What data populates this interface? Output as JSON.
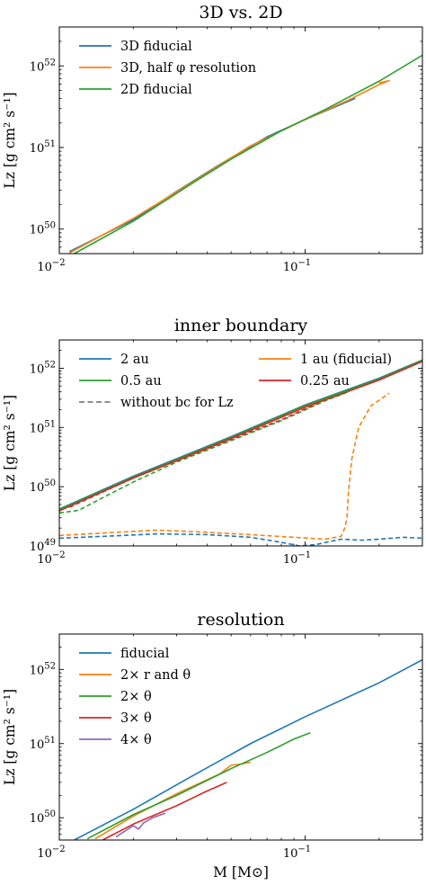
{
  "xlabel": "M [M⊙]",
  "colors": {
    "blue": "#1f77b4",
    "orange": "#ff7f0e",
    "green": "#2ca02c",
    "red": "#d62728",
    "purple": "#9467bd",
    "gray": "#7f7f7f"
  },
  "chart_data": [
    {
      "type": "line",
      "title": "3D vs. 2D",
      "ylabel": "Lz [g cm² s⁻¹]",
      "xscale": "log",
      "yscale": "log",
      "xlim": [
        0.01,
        0.3
      ],
      "ylim": [
        5e+49,
        3e+52
      ],
      "xticks": [
        {
          "v": 0.01,
          "b": "10",
          "e": "−2"
        },
        {
          "v": 0.1,
          "b": "10",
          "e": "−1"
        }
      ],
      "yticks": [
        {
          "v": 1e+50,
          "b": "10",
          "e": "50"
        },
        {
          "v": 1e+51,
          "b": "10",
          "e": "51"
        },
        {
          "v": 1e+52,
          "b": "10",
          "e": "52"
        }
      ],
      "legend": {
        "placement": "top-left",
        "columns": 1
      },
      "series": [
        {
          "name": "3D fiducial",
          "color": "blue",
          "dash": false,
          "points": [
            [
              0.011,
              5.3e+49
            ],
            [
              0.02,
              1.3e+50
            ],
            [
              0.03,
              2.9e+50
            ],
            [
              0.045,
              6.2e+50
            ],
            [
              0.07,
              1.35e+51
            ],
            [
              0.1,
              2.2e+51
            ],
            [
              0.16,
              4e+51
            ]
          ]
        },
        {
          "name": "3D, half φ resolution",
          "color": "orange",
          "dash": false,
          "points": [
            [
              0.011,
              5.1e+49
            ],
            [
              0.02,
              1.35e+50
            ],
            [
              0.035,
              3.8e+50
            ],
            [
              0.06,
              1.05e+51
            ],
            [
              0.1,
              2.2e+51
            ],
            [
              0.15,
              3.8e+51
            ],
            [
              0.2,
              5.9e+51
            ],
            [
              0.22,
              6.6e+51
            ],
            [
              0.2,
              6.2e+51
            ]
          ]
        },
        {
          "name": "2D fiducial",
          "color": "green",
          "dash": false,
          "points": [
            [
              0.0115,
              5e+49
            ],
            [
              0.02,
              1.25e+50
            ],
            [
              0.035,
              3.7e+50
            ],
            [
              0.05,
              7.2e+50
            ],
            [
              0.08,
              1.6e+51
            ],
            [
              0.12,
              2.9e+51
            ],
            [
              0.2,
              6.5e+51
            ],
            [
              0.3,
              1.35e+52
            ]
          ]
        }
      ]
    },
    {
      "type": "line",
      "title": "inner boundary",
      "ylabel": "Lz [g cm² s⁻¹]",
      "xscale": "log",
      "yscale": "log",
      "xlim": [
        0.01,
        0.3
      ],
      "ylim": [
        1e+49,
        3e+52
      ],
      "xticks": [
        {
          "v": 0.01,
          "b": "10",
          "e": "−2"
        },
        {
          "v": 0.1,
          "b": "10",
          "e": "−1"
        }
      ],
      "yticks": [
        {
          "v": 1e+49,
          "b": "10",
          "e": "49"
        },
        {
          "v": 1e+50,
          "b": "10",
          "e": "50"
        },
        {
          "v": 1e+51,
          "b": "10",
          "e": "51"
        },
        {
          "v": 1e+52,
          "b": "10",
          "e": "52"
        }
      ],
      "legend": {
        "placement": "top-left",
        "columns": 2
      },
      "series": [
        {
          "name": "2 au",
          "color": "blue",
          "dash": false,
          "points": [
            [
              0.01,
              4.2e+49
            ],
            [
              0.02,
              1.5e+50
            ],
            [
              0.05,
              7e+50
            ],
            [
              0.1,
              2.4e+51
            ],
            [
              0.2,
              6.8e+51
            ],
            [
              0.3,
              1.38e+52
            ]
          ]
        },
        {
          "name": "1 au (fiducial)",
          "color": "orange",
          "dash": false,
          "points": [
            [
              0.01,
              4e+49
            ],
            [
              0.02,
              1.4e+50
            ],
            [
              0.05,
              6.6e+50
            ],
            [
              0.1,
              2.3e+51
            ],
            [
              0.2,
              6.5e+51
            ],
            [
              0.3,
              1.35e+52
            ]
          ]
        },
        {
          "name": "0.5 au",
          "color": "green",
          "dash": false,
          "points": [
            [
              0.01,
              4.1e+49
            ],
            [
              0.02,
              1.45e+50
            ],
            [
              0.05,
              6.8e+50
            ],
            [
              0.1,
              2.35e+51
            ],
            [
              0.2,
              6.6e+51
            ],
            [
              0.3,
              1.36e+52
            ]
          ]
        },
        {
          "name": "0.25 au",
          "color": "red",
          "dash": false,
          "points": [
            [
              0.01,
              3.9e+49
            ],
            [
              0.02,
              1.4e+50
            ],
            [
              0.05,
              6.5e+50
            ],
            [
              0.1,
              2.2e+51
            ],
            [
              0.2,
              6.3e+51
            ],
            [
              0.3,
              1.3e+52
            ]
          ]
        },
        {
          "name": "without bc for Lz",
          "color": "gray",
          "dash": true,
          "points": []
        },
        {
          "name": "",
          "color": "green",
          "dash": true,
          "points": [
            [
              0.01,
              3.6e+49
            ],
            [
              0.012,
              4e+49
            ],
            [
              0.015,
              6.5e+49
            ],
            [
              0.02,
              1.2e+50
            ],
            [
              0.03,
              2.6e+50
            ],
            [
              0.05,
              6e+50
            ],
            [
              0.08,
              1.3e+51
            ],
            [
              0.12,
              2.8e+51
            ],
            [
              0.15,
              4e+51
            ]
          ]
        },
        {
          "name": "",
          "color": "red",
          "dash": true,
          "points": [
            [
              0.011,
              4.5e+49
            ],
            [
              0.02,
              1.4e+50
            ],
            [
              0.035,
              3.5e+50
            ],
            [
              0.05,
              6.3e+50
            ],
            [
              0.08,
              1.35e+51
            ],
            [
              0.12,
              2.9e+51
            ],
            [
              0.15,
              4e+51
            ]
          ]
        },
        {
          "name": "",
          "color": "orange",
          "dash": true,
          "points": [
            [
              0.01,
              1.5e+49
            ],
            [
              0.015,
              1.65e+49
            ],
            [
              0.025,
              1.85e+49
            ],
            [
              0.04,
              1.7e+49
            ],
            [
              0.06,
              1.55e+49
            ],
            [
              0.09,
              1.4e+49
            ],
            [
              0.12,
              1.3e+49
            ],
            [
              0.14,
              1.45e+49
            ],
            [
              0.145,
              2e+49
            ],
            [
              0.148,
              3e+49
            ],
            [
              0.15,
              8e+49
            ],
            [
              0.155,
              3e+50
            ],
            [
              0.165,
              1e+51
            ],
            [
              0.185,
              2.3e+51
            ],
            [
              0.22,
              3.8e+51
            ]
          ]
        },
        {
          "name": "",
          "color": "blue",
          "dash": true,
          "points": [
            [
              0.01,
              1.35e+49
            ],
            [
              0.015,
              1.45e+49
            ],
            [
              0.025,
              1.6e+49
            ],
            [
              0.04,
              1.55e+49
            ],
            [
              0.06,
              1.4e+49
            ],
            [
              0.08,
              1.15e+49
            ],
            [
              0.095,
              1e+49
            ],
            [
              0.11,
              1.05e+49
            ],
            [
              0.14,
              1.3e+49
            ],
            [
              0.17,
              1.25e+49
            ],
            [
              0.2,
              1.3e+49
            ],
            [
              0.25,
              1.4e+49
            ],
            [
              0.3,
              1.35e+49
            ]
          ]
        }
      ]
    },
    {
      "type": "line",
      "title": "resolution",
      "ylabel": "Lz [g cm² s⁻¹]",
      "xscale": "log",
      "yscale": "log",
      "xlim": [
        0.01,
        0.3
      ],
      "ylim": [
        5e+49,
        3e+52
      ],
      "xticks": [
        {
          "v": 0.01,
          "b": "10",
          "e": "−2"
        },
        {
          "v": 0.1,
          "b": "10",
          "e": "−1"
        }
      ],
      "yticks": [
        {
          "v": 1e+50,
          "b": "10",
          "e": "50"
        },
        {
          "v": 1e+51,
          "b": "10",
          "e": "51"
        },
        {
          "v": 1e+52,
          "b": "10",
          "e": "52"
        }
      ],
      "legend": {
        "placement": "top-left",
        "columns": 1
      },
      "series": [
        {
          "name": "fiducial",
          "color": "blue",
          "dash": false,
          "points": [
            [
              0.0115,
              5e+49
            ],
            [
              0.02,
              1.3e+50
            ],
            [
              0.035,
              3.7e+50
            ],
            [
              0.06,
              1e+51
            ],
            [
              0.1,
              2.3e+51
            ],
            [
              0.2,
              6.6e+51
            ],
            [
              0.3,
              1.35e+52
            ]
          ]
        },
        {
          "name": "2× r and θ",
          "color": "orange",
          "dash": false,
          "points": [
            [
              0.014,
              5.2e+49
            ],
            [
              0.02,
              1.05e+50
            ],
            [
              0.03,
              2.1e+50
            ],
            [
              0.045,
              3.9e+50
            ],
            [
              0.05,
              5.1e+50
            ],
            [
              0.055,
              5.3e+50
            ],
            [
              0.06,
              5.6e+50
            ]
          ]
        },
        {
          "name": "2× θ",
          "color": "green",
          "dash": false,
          "points": [
            [
              0.013,
              5.2e+49
            ],
            [
              0.02,
              1.1e+50
            ],
            [
              0.03,
              2e+50
            ],
            [
              0.05,
              4.6e+50
            ],
            [
              0.07,
              7.6e+50
            ],
            [
              0.09,
              1.15e+51
            ],
            [
              0.105,
              1.4e+51
            ]
          ]
        },
        {
          "name": "3× θ",
          "color": "red",
          "dash": false,
          "points": [
            [
              0.015,
              5e+49
            ],
            [
              0.02,
              8.2e+49
            ],
            [
              0.03,
              1.45e+50
            ],
            [
              0.04,
              2.3e+50
            ],
            [
              0.048,
              3e+50
            ]
          ]
        },
        {
          "name": "4× θ",
          "color": "purple",
          "dash": false,
          "points": [
            [
              0.017,
              5.5e+49
            ],
            [
              0.019,
              7e+49
            ],
            [
              0.02,
              7.8e+49
            ],
            [
              0.021,
              7e+49
            ],
            [
              0.022,
              8.5e+49
            ],
            [
              0.024,
              1e+50
            ],
            [
              0.027,
              1.15e+50
            ]
          ]
        }
      ]
    }
  ]
}
